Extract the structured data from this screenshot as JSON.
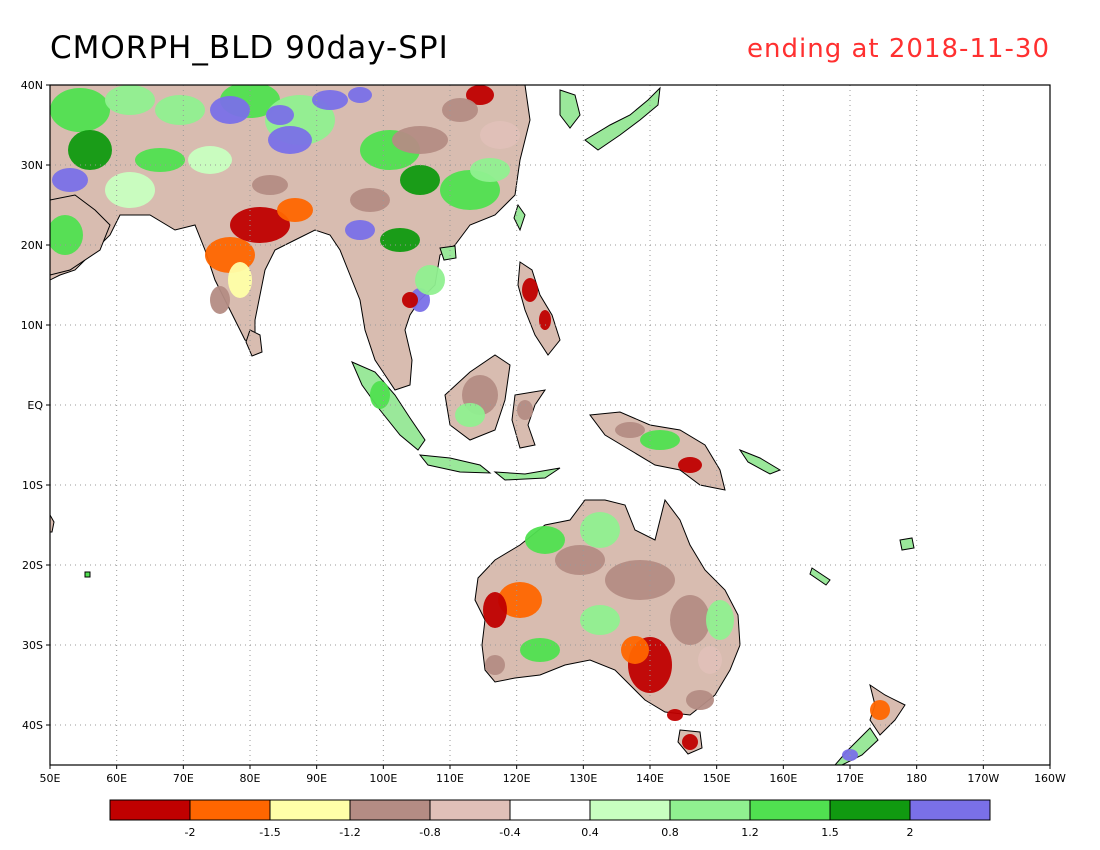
{
  "title": "CMORPH_BLD 90day-SPI",
  "subtitle": "ending at 2018-11-30",
  "subtitle_color": "#ff3030",
  "map": {
    "lon_range": [
      50,
      200
    ],
    "lat_range": [
      -45,
      40
    ],
    "lon_ticks": [
      {
        "v": 50,
        "label": "50E"
      },
      {
        "v": 60,
        "label": "60E"
      },
      {
        "v": 70,
        "label": "70E"
      },
      {
        "v": 80,
        "label": "80E"
      },
      {
        "v": 90,
        "label": "90E"
      },
      {
        "v": 100,
        "label": "100E"
      },
      {
        "v": 110,
        "label": "110E"
      },
      {
        "v": 120,
        "label": "120E"
      },
      {
        "v": 130,
        "label": "130E"
      },
      {
        "v": 140,
        "label": "140E"
      },
      {
        "v": 150,
        "label": "150E"
      },
      {
        "v": 160,
        "label": "160E"
      },
      {
        "v": 170,
        "label": "170E"
      },
      {
        "v": 180,
        "label": "180"
      },
      {
        "v": 190,
        "label": "170W"
      },
      {
        "v": 200,
        "label": "160W"
      }
    ],
    "lat_ticks": [
      {
        "v": 40,
        "label": "40N"
      },
      {
        "v": 30,
        "label": "30N"
      },
      {
        "v": 20,
        "label": "20N"
      },
      {
        "v": 10,
        "label": "10N"
      },
      {
        "v": 0,
        "label": "EQ"
      },
      {
        "v": -10,
        "label": "10S"
      },
      {
        "v": -20,
        "label": "20S"
      },
      {
        "v": -30,
        "label": "30S"
      },
      {
        "v": -40,
        "label": "40S"
      }
    ],
    "grid": "dotted"
  },
  "legend": {
    "colors": [
      "#c00000",
      "#ff6600",
      "#ffffa8",
      "#b48c84",
      "#e0c0b8",
      "#ffffff",
      "#c8ffc0",
      "#90f090",
      "#50e050",
      "#109a10",
      "#7a70e8"
    ],
    "labels": [
      "-2",
      "-1.5",
      "-1.2",
      "-0.8",
      "-0.4",
      "0.4",
      "0.8",
      "1.2",
      "1.5",
      "2"
    ]
  }
}
